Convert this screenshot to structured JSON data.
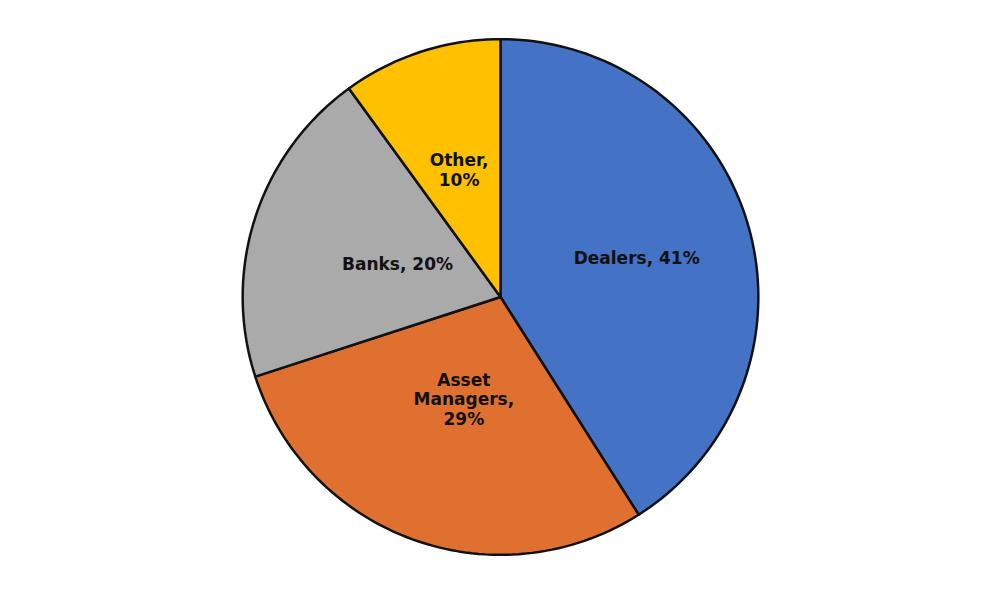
{
  "chart_data": {
    "type": "pie",
    "values": [
      41,
      29,
      20,
      10
    ],
    "value_labels": [
      "Dealers, 41%",
      "Asset\nManagers,\n29%",
      "Banks, 20%",
      "Other,\n10%"
    ],
    "colors": [
      "#4472C4",
      "#E07030",
      "#AAAAAA",
      "#FFC000"
    ],
    "data_labels": true
  }
}
